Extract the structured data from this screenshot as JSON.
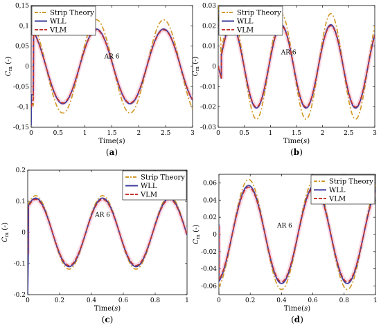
{
  "colors": {
    "strip": "#d39a2c",
    "wll": "#3d3d9c",
    "vlm": "#c4362c",
    "glow": "#f5b8d2"
  },
  "chart_data": [
    {
      "type": "line",
      "panel_label": "(a)",
      "xlabel": "Time(s)",
      "ylabel": "C_m (-)",
      "xlim": [
        0,
        3
      ],
      "ylim": [
        -0.15,
        0.15
      ],
      "xticks": [
        0,
        0.5,
        1,
        1.5,
        2,
        2.5,
        3
      ],
      "xticklabels": [
        "0",
        "0.5",
        "1",
        "1.5",
        "2",
        "2.5",
        "3"
      ],
      "yticks": [
        -0.15,
        -0.1,
        -0.05,
        0,
        0.05,
        0.1,
        0.15
      ],
      "yticklabels": [
        "-0,15",
        "-0,1",
        "-0,05",
        "0",
        "0,05",
        "0,1",
        "0,15"
      ],
      "annotation": {
        "text": "AR 6",
        "x": 1.5,
        "y": 0.02
      },
      "legend": "top-left",
      "series": [
        {
          "name": "Strip Theory",
          "style": "dashdot",
          "color": "#d39a2c",
          "amplitude": 0.115,
          "period": 1.25,
          "phase": -0.35,
          "x0": 0,
          "x1": 3,
          "start": [
            [
              0,
              -0.09
            ],
            [
              0.04,
              -0.095
            ]
          ]
        },
        {
          "name": "WLL",
          "style": "solid",
          "color": "#3d3d9c",
          "amplitude": 0.092,
          "period": 1.25,
          "phase": -0.35,
          "x0": 0,
          "x1": 3,
          "start": [
            [
              0,
              -0.145
            ],
            [
              0.005,
              -0.07
            ],
            [
              0.04,
              -0.07
            ]
          ]
        },
        {
          "name": "VLM",
          "style": "dashed",
          "color": "#c4362c",
          "amplitude": 0.09,
          "period": 1.25,
          "phase": -0.35,
          "x0": 0,
          "x1": 3,
          "start": [
            [
              0,
              -0.1
            ],
            [
              0.04,
              -0.08
            ]
          ]
        }
      ]
    },
    {
      "type": "line",
      "panel_label": "(b)",
      "xlabel": "Time(s)",
      "ylabel": "C_m (-)",
      "xlim": [
        0,
        3
      ],
      "ylim": [
        -0.03,
        0.03
      ],
      "xticks": [
        0,
        0.5,
        1,
        1.5,
        2,
        2.5,
        3
      ],
      "xticklabels": [
        "0",
        "0.5",
        "1",
        "1.5",
        "2",
        "2.5",
        "3"
      ],
      "yticks": [
        -0.03,
        -0.02,
        -0.01,
        0,
        0.01,
        0.02,
        0.03
      ],
      "yticklabels": [
        "-0.03",
        "-0.02",
        "-0.01",
        "0",
        "0.01",
        "0.02",
        "0.03"
      ],
      "annotation": {
        "text": "AR 6",
        "x": 1.35,
        "y": 0.006
      },
      "legend": "top-left",
      "series": [
        {
          "name": "Strip Theory",
          "style": "dashdot",
          "color": "#d39a2c",
          "amplitude": 0.026,
          "period": 0.95,
          "phase": 0.02,
          "x0": 0,
          "x1": 3,
          "start": [
            [
              0,
              0.03
            ],
            [
              0.05,
              0.012
            ]
          ]
        },
        {
          "name": "WLL",
          "style": "solid",
          "color": "#3d3d9c",
          "amplitude": 0.0205,
          "period": 0.95,
          "phase": 0.02,
          "x0": 0,
          "x1": 3,
          "start": [
            [
              0,
              0.0
            ],
            [
              0.06,
              -0.006
            ]
          ]
        },
        {
          "name": "VLM",
          "style": "dashed",
          "color": "#c4362c",
          "amplitude": 0.02,
          "period": 0.95,
          "phase": 0.02,
          "x0": 0,
          "x1": 3,
          "start": [
            [
              0,
              0.0
            ],
            [
              0.06,
              -0.006
            ]
          ]
        }
      ]
    },
    {
      "type": "line",
      "panel_label": "(c)",
      "xlabel": "Time(s)",
      "ylabel": "C_m (-)",
      "xlim": [
        0,
        1
      ],
      "ylim": [
        -0.2,
        0.2
      ],
      "xticks": [
        0,
        0.2,
        0.4,
        0.6,
        0.8,
        1
      ],
      "xticklabels": [
        "0",
        "0.2",
        "0.4",
        "0.6",
        "0.8",
        "1"
      ],
      "yticks": [
        -0.2,
        -0.1,
        0,
        0.1,
        0.2
      ],
      "yticklabels": [
        "-0.2",
        "-0.1",
        "0",
        "0.1",
        "0.2"
      ],
      "annotation": {
        "text": "AR 6",
        "x": 0.47,
        "y": 0.05
      },
      "legend": "top-right",
      "series": [
        {
          "name": "Strip Theory",
          "style": "dashdot",
          "color": "#d39a2c",
          "amplitude": 0.118,
          "period": 0.42,
          "phase": -0.055,
          "x0": 0,
          "x1": 1,
          "start": [
            [
              0,
              -0.08
            ]
          ]
        },
        {
          "name": "WLL",
          "style": "solid",
          "color": "#3d3d9c",
          "amplitude": 0.11,
          "period": 0.42,
          "phase": -0.055,
          "x0": 0,
          "x1": 1,
          "start": [
            [
              0,
              -0.2
            ],
            [
              0.004,
              -0.06
            ]
          ]
        },
        {
          "name": "VLM",
          "style": "dashed",
          "color": "#c4362c",
          "amplitude": 0.106,
          "period": 0.42,
          "phase": -0.055,
          "x0": 0,
          "x1": 1,
          "start": [
            [
              0,
              -0.07
            ]
          ]
        }
      ]
    },
    {
      "type": "line",
      "panel_label": "(d)",
      "xlabel": "Time(s)",
      "ylabel": "C_m (-)",
      "xlim": [
        0,
        1
      ],
      "ylim": [
        -0.07,
        0.07
      ],
      "xticks": [
        0,
        0.2,
        0.4,
        0.6,
        0.8,
        1
      ],
      "xticklabels": [
        "0",
        "0.2",
        "0.4",
        "0.6",
        "0.8",
        "1"
      ],
      "yticks": [
        -0.06,
        -0.04,
        -0.02,
        0,
        0.02,
        0.04,
        0.06
      ],
      "yticklabels": [
        "-0.06",
        "-0.04",
        "-0.02",
        "0",
        "0.02",
        "0.04",
        "0.06"
      ],
      "annotation": {
        "text": "AR 6",
        "x": 0.42,
        "y": 0.008
      },
      "legend": "top-right",
      "series": [
        {
          "name": "Strip Theory",
          "style": "dashdot",
          "color": "#d39a2c",
          "amplitude": 0.064,
          "period": 0.42,
          "phase": 0.085,
          "x0": 0,
          "x1": 1,
          "start": [
            [
              0,
              0.0
            ]
          ]
        },
        {
          "name": "WLL",
          "style": "solid",
          "color": "#3d3d9c",
          "amplitude": 0.057,
          "period": 0.42,
          "phase": 0.085,
          "x0": 0,
          "x1": 1,
          "start": [
            [
              0,
              0.012
            ]
          ]
        },
        {
          "name": "VLM",
          "style": "dashed",
          "color": "#c4362c",
          "amplitude": 0.055,
          "period": 0.42,
          "phase": 0.085,
          "x0": 0,
          "x1": 1,
          "start": [
            [
              0,
              0.01
            ]
          ]
        }
      ]
    }
  ]
}
